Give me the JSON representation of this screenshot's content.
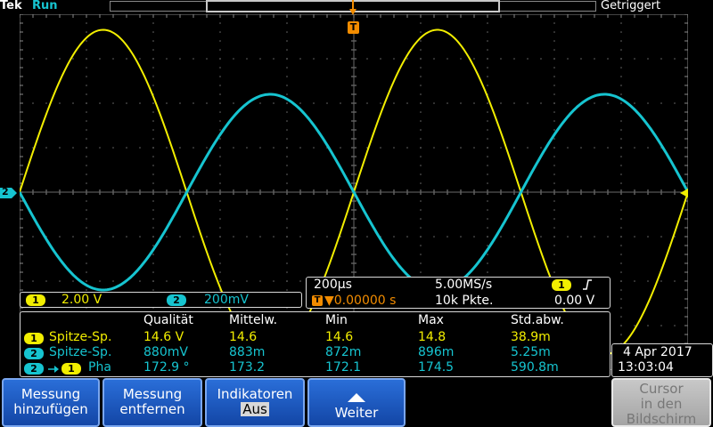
{
  "status_bar": {
    "brand": "Tek",
    "run_state": "Run",
    "trigger_state": "Getriggert",
    "trigger_marker": "T"
  },
  "channel_markers": {
    "ch2": "2"
  },
  "waveforms": [
    {
      "channel": 1,
      "color": "#f2ee00",
      "shape": "sine",
      "cycles_visible": 2.0,
      "amplitude_divisions": 3.65,
      "phase": "positive-start"
    },
    {
      "channel": 2,
      "color": "#16c4d0",
      "shape": "sine",
      "cycles_visible": 2.0,
      "amplitude_divisions": 2.2,
      "phase": "negative-start"
    }
  ],
  "scale_box": {
    "ch1_badge": "1",
    "ch1_scale": "2.00 V",
    "ch2_badge": "2",
    "ch2_scale": "200mV"
  },
  "timebase_box": {
    "time_per_div": "200µs",
    "sample_rate": "5.00MS/s",
    "trigger_source_badge": "1",
    "trigger_slope_icon": "rising-edge-icon",
    "trigger_position": "▼0.00000 s",
    "record_length": "10k Pkte.",
    "trigger_level": "0.00 V",
    "trigger_badge": "T"
  },
  "measurements": {
    "headers": [
      "Qualität",
      "Mittelw.",
      "Min",
      "Max",
      "Std.abw."
    ],
    "rows": [
      {
        "badge": "1",
        "badge2": "",
        "label": "Spitze-Sp.",
        "color": "#f2ee00",
        "values": [
          "14.6 V",
          "14.6",
          "14.6",
          "14.8",
          "38.9m"
        ]
      },
      {
        "badge": "2",
        "badge2": "",
        "label": "Spitze-Sp.",
        "color": "#16c4d0",
        "values": [
          "880mV",
          "883m",
          "872m",
          "896m",
          "5.25m"
        ]
      },
      {
        "badge": "2",
        "badge2": "1",
        "label": "Pha",
        "color": "#16c4d0",
        "values": [
          "172.9 °",
          "173.2",
          "172.1",
          "174.5",
          "590.8m"
        ]
      }
    ]
  },
  "datetime": {
    "date": "4 Apr 2017",
    "time": "13:03:04"
  },
  "buttons": {
    "add": [
      "Messung",
      "hinzufügen"
    ],
    "remove": [
      "Messung",
      "entfernen"
    ],
    "indicators": [
      "Indikatoren",
      "Aus"
    ],
    "more_icon": "triangle-up-icon",
    "more": "Weiter",
    "cursor": [
      "Cursor",
      "in den",
      "Bildschirm"
    ]
  }
}
